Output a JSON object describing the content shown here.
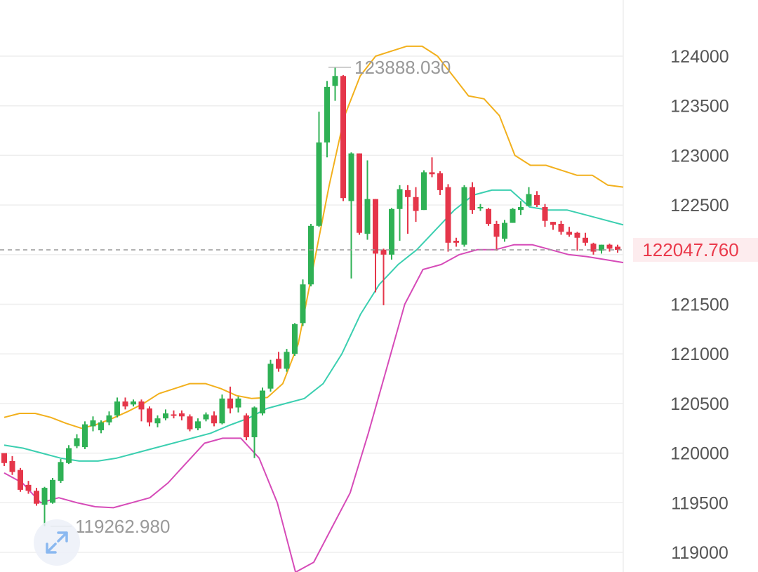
{
  "chart_data": {
    "type": "candlestick",
    "ylim": [
      118900,
      124450
    ],
    "y_ticks": [
      {
        "value": 124000,
        "label": "124000"
      },
      {
        "value": 123500,
        "label": "123500"
      },
      {
        "value": 123000,
        "label": "123000"
      },
      {
        "value": 122500,
        "label": "122500"
      },
      {
        "value": 122000,
        "label": "122000"
      },
      {
        "value": 121500,
        "label": "121500"
      },
      {
        "value": 121000,
        "label": "121000"
      },
      {
        "value": 120500,
        "label": "120500"
      },
      {
        "value": 120000,
        "label": "120000"
      },
      {
        "value": 119500,
        "label": "119500"
      },
      {
        "value": 119000,
        "label": "119000"
      }
    ],
    "grid": true,
    "colors": {
      "up": "#2fb155",
      "down": "#e5364a",
      "upper_band": "#f2b01d",
      "middle_band": "#3bcfb0",
      "lower_band": "#d64bb8",
      "grid": "#eeeeee",
      "current_price": "#ea3a4b"
    },
    "high_annotation": {
      "value": 123888.03,
      "label": "123888.030"
    },
    "low_annotation": {
      "value": 119262.98,
      "label": "119262.980"
    },
    "current_price": {
      "value": 122047.76,
      "label": "122047.760"
    },
    "candles": [
      [
        120000,
        119900,
        119980,
        119870
      ],
      [
        119920,
        119810,
        119970,
        119780
      ],
      [
        119830,
        119630,
        119850,
        119610
      ],
      [
        119680,
        119620,
        119720,
        119590
      ],
      [
        119620,
        119490,
        119650,
        119470
      ],
      [
        119480,
        119650,
        119660,
        119263
      ],
      [
        119500,
        119730,
        119750,
        119490
      ],
      [
        119720,
        119910,
        119940,
        119700
      ],
      [
        119900,
        120050,
        120080,
        119890
      ],
      [
        120070,
        120150,
        120190,
        120050
      ],
      [
        120060,
        120290,
        120320,
        120040
      ],
      [
        120270,
        120330,
        120370,
        120220
      ],
      [
        120230,
        120310,
        120330,
        120200
      ],
      [
        120310,
        120380,
        120420,
        120280
      ],
      [
        120380,
        120520,
        120560,
        120360
      ],
      [
        120520,
        120470,
        120560,
        120440
      ],
      [
        120490,
        120520,
        120540,
        120470
      ],
      [
        120520,
        120440,
        120540,
        120320
      ],
      [
        120450,
        120310,
        120470,
        120270
      ],
      [
        120300,
        120350,
        120380,
        120260
      ],
      [
        120350,
        120400,
        120440,
        120330
      ],
      [
        120390,
        120380,
        120430,
        120350
      ],
      [
        120400,
        120370,
        120430,
        120330
      ],
      [
        120370,
        120240,
        120390,
        120220
      ],
      [
        120250,
        120320,
        120350,
        120230
      ],
      [
        120340,
        120390,
        120410,
        120320
      ],
      [
        120380,
        120300,
        120420,
        120270
      ],
      [
        120300,
        120550,
        120590,
        120290
      ],
      [
        120550,
        120450,
        120670,
        120400
      ],
      [
        120460,
        120550,
        120570,
        120410
      ],
      [
        120380,
        120160,
        120400,
        120130
      ],
      [
        120160,
        120460,
        120470,
        119950
      ],
      [
        120400,
        120630,
        120660,
        120380
      ],
      [
        120650,
        120900,
        120940,
        120620
      ],
      [
        120950,
        120850,
        121020,
        120820
      ],
      [
        120850,
        121020,
        121050,
        120820
      ],
      [
        121000,
        121300,
        121310,
        120980
      ],
      [
        121310,
        121700,
        121750,
        121280
      ],
      [
        121700,
        122290,
        122310,
        121680
      ],
      [
        122290,
        123130,
        123440,
        122280
      ],
      [
        123130,
        123690,
        123750,
        122980
      ],
      [
        123700,
        123800,
        123888,
        123550
      ],
      [
        123800,
        122570,
        123810,
        122540
      ],
      [
        122540,
        123020,
        123030,
        121760
      ],
      [
        123020,
        122220,
        123020,
        122200
      ],
      [
        122210,
        122560,
        122950,
        122150
      ],
      [
        122560,
        122010,
        122560,
        121620
      ],
      [
        122050,
        122000,
        122060,
        121490
      ],
      [
        122000,
        122460,
        122470,
        121950
      ],
      [
        122460,
        122660,
        122700,
        122140
      ],
      [
        122650,
        122580,
        122700,
        122210
      ],
      [
        122580,
        122440,
        122680,
        122330
      ],
      [
        122450,
        122830,
        122850,
        122450
      ],
      [
        122830,
        122810,
        122980,
        122780
      ],
      [
        122820,
        122650,
        122840,
        122600
      ],
      [
        122680,
        122120,
        122710,
        122030
      ],
      [
        122140,
        122120,
        122170,
        122080
      ],
      [
        122100,
        122680,
        122700,
        122080
      ],
      [
        122680,
        122450,
        122730,
        122410
      ],
      [
        122470,
        122480,
        122510,
        122440
      ],
      [
        122460,
        122310,
        122470,
        122290
      ],
      [
        122310,
        122180,
        122340,
        122040
      ],
      [
        122160,
        122320,
        122350,
        122130
      ],
      [
        122320,
        122460,
        122470,
        122320
      ],
      [
        122450,
        122480,
        122540,
        122400
      ],
      [
        122490,
        122610,
        122680,
        122500
      ],
      [
        122600,
        122500,
        122640,
        122480
      ],
      [
        122480,
        122340,
        122510,
        122280
      ],
      [
        122330,
        122300,
        122330,
        122250
      ],
      [
        122310,
        122230,
        122340,
        122200
      ],
      [
        122230,
        122200,
        122280,
        122180
      ],
      [
        122220,
        122170,
        122230,
        122040
      ],
      [
        122170,
        122120,
        122220,
        122090
      ],
      [
        122110,
        122030,
        122120,
        122000
      ],
      [
        122040,
        122100,
        122100,
        122010
      ],
      [
        122100,
        122060,
        122110,
        122030
      ],
      [
        122080,
        122048,
        122100,
        122020
      ]
    ],
    "upper_band": [
      120360,
      120400,
      120400,
      120360,
      120300,
      120250,
      120290,
      120350,
      120420,
      120500,
      120600,
      120650,
      120700,
      120700,
      120650,
      120580,
      120550,
      120560,
      120700,
      121100,
      121900,
      122700,
      123400,
      123800,
      124000,
      124050,
      124100,
      124100,
      124000,
      123800,
      123600,
      123570,
      123400,
      123000,
      122900,
      122900,
      122850,
      122800,
      122800,
      122700,
      122680
    ],
    "middle_band": [
      120080,
      120050,
      120000,
      119950,
      119920,
      119920,
      119950,
      120000,
      120050,
      120100,
      120150,
      120200,
      120280,
      120350,
      120450,
      120500,
      120550,
      120700,
      121000,
      121400,
      121700,
      121900,
      122050,
      122250,
      122450,
      122600,
      122650,
      122650,
      122480,
      122450,
      122450,
      122400,
      122350,
      122300
    ],
    "lower_band": [
      119800,
      119700,
      119500,
      119550,
      119500,
      119460,
      119450,
      119500,
      119550,
      119700,
      119900,
      120100,
      120150,
      120150,
      119950,
      119500,
      118800,
      118900,
      119250,
      119600,
      120200,
      120850,
      121500,
      121850,
      121900,
      122000,
      122050,
      122050,
      122100,
      122100,
      122050,
      122000,
      121980,
      121950,
      121920
    ]
  }
}
